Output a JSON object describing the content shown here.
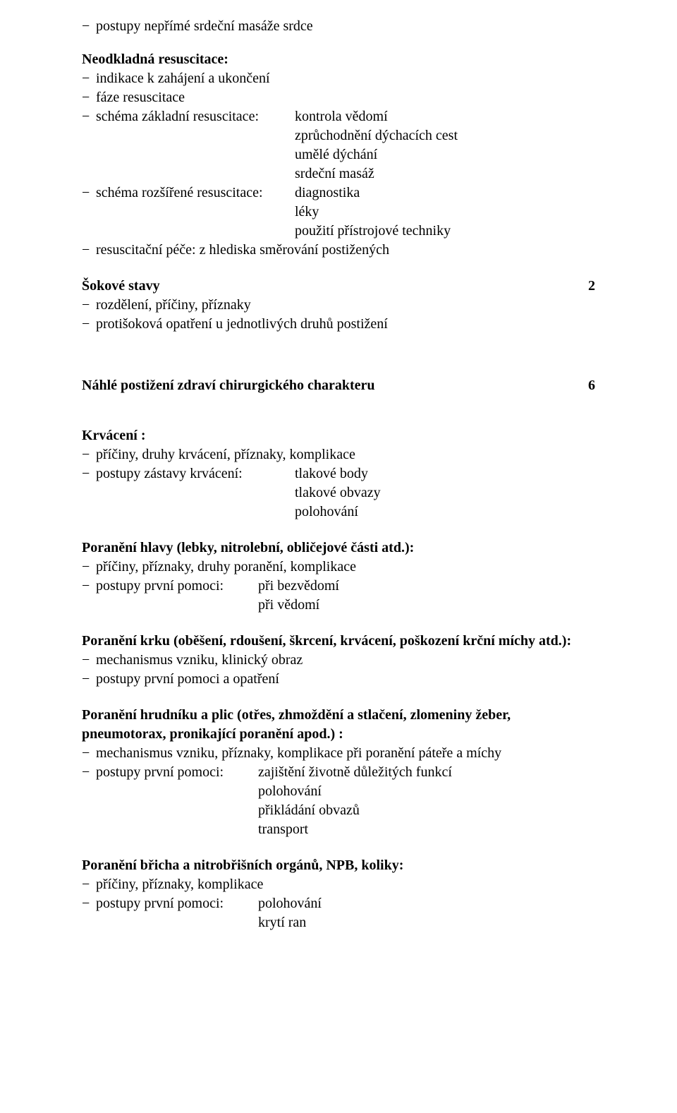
{
  "intro": {
    "item1": "postupy nepřímé srdeční masáže srdce"
  },
  "sec1": {
    "title": "Neodkladná resuscitace:",
    "i1": "indikace k zahájení a ukončení",
    "i2": "fáze resuscitace",
    "i3_label": "schéma základní resuscitace:",
    "i3_v1": "kontrola vědomí",
    "i3_v2": "zprůchodnění dýchacích cest",
    "i3_v3": "umělé dýchání",
    "i3_v4": "srdeční masáž",
    "i4_label": "schéma rozšířené resuscitace:",
    "i4_v1": "diagnostika",
    "i4_v2": "léky",
    "i4_v3": "použití přístrojové techniky",
    "i5": "resuscitační péče: z hlediska směrování postižených"
  },
  "sec2": {
    "title": "Šokové stavy",
    "num": "2",
    "i1": "rozdělení, příčiny, příznaky",
    "i2": "protišoková opatření u jednotlivých druhů postižení"
  },
  "sec3": {
    "title": "Náhlé postižení zdraví chirurgického charakteru",
    "num": "6"
  },
  "sec4": {
    "title": "Krvácení :",
    "i1": "příčiny, druhy krvácení, příznaky, komplikace",
    "i2_label": "postupy zástavy krvácení:",
    "i2_v1": "tlakové body",
    "i2_v2": "tlakové obvazy",
    "i2_v3": "polohování"
  },
  "sec5": {
    "title": "Poranění hlavy (lebky, nitrolební, obličejové části atd.):",
    "i1": "příčiny, příznaky, druhy poranění, komplikace",
    "i2_label": "postupy první pomoci:",
    "i2_v1": "při bezvědomí",
    "i2_v2": "při vědomí"
  },
  "sec6": {
    "title": "Poranění krku (oběšení, rdoušení, škrcení, krvácení, poškození krční míchy atd.):",
    "i1": "mechanismus vzniku, klinický obraz",
    "i2": "postupy první pomoci a opatření"
  },
  "sec7": {
    "title": "Poranění hrudníku a plic (otřes, zhmoždění a stlačení, zlomeniny žeber, pneumotorax, pronikající poranění apod.) :",
    "i1": "mechanismus vzniku, příznaky, komplikace při poranění páteře a míchy",
    "i2_label": "postupy první pomoci:",
    "i2_v1": "zajištění životně důležitých funkcí",
    "i2_v2": "polohování",
    "i2_v3": "přikládání obvazů",
    "i2_v4": "transport"
  },
  "sec8": {
    "title": "Poranění břicha a nitrobřišních orgánů, NPB, koliky:",
    "i1": "příčiny, příznaky, komplikace",
    "i2_label": "postupy první pomoci:",
    "i2_v1": "polohování",
    "i2_v2": "krytí ran"
  }
}
